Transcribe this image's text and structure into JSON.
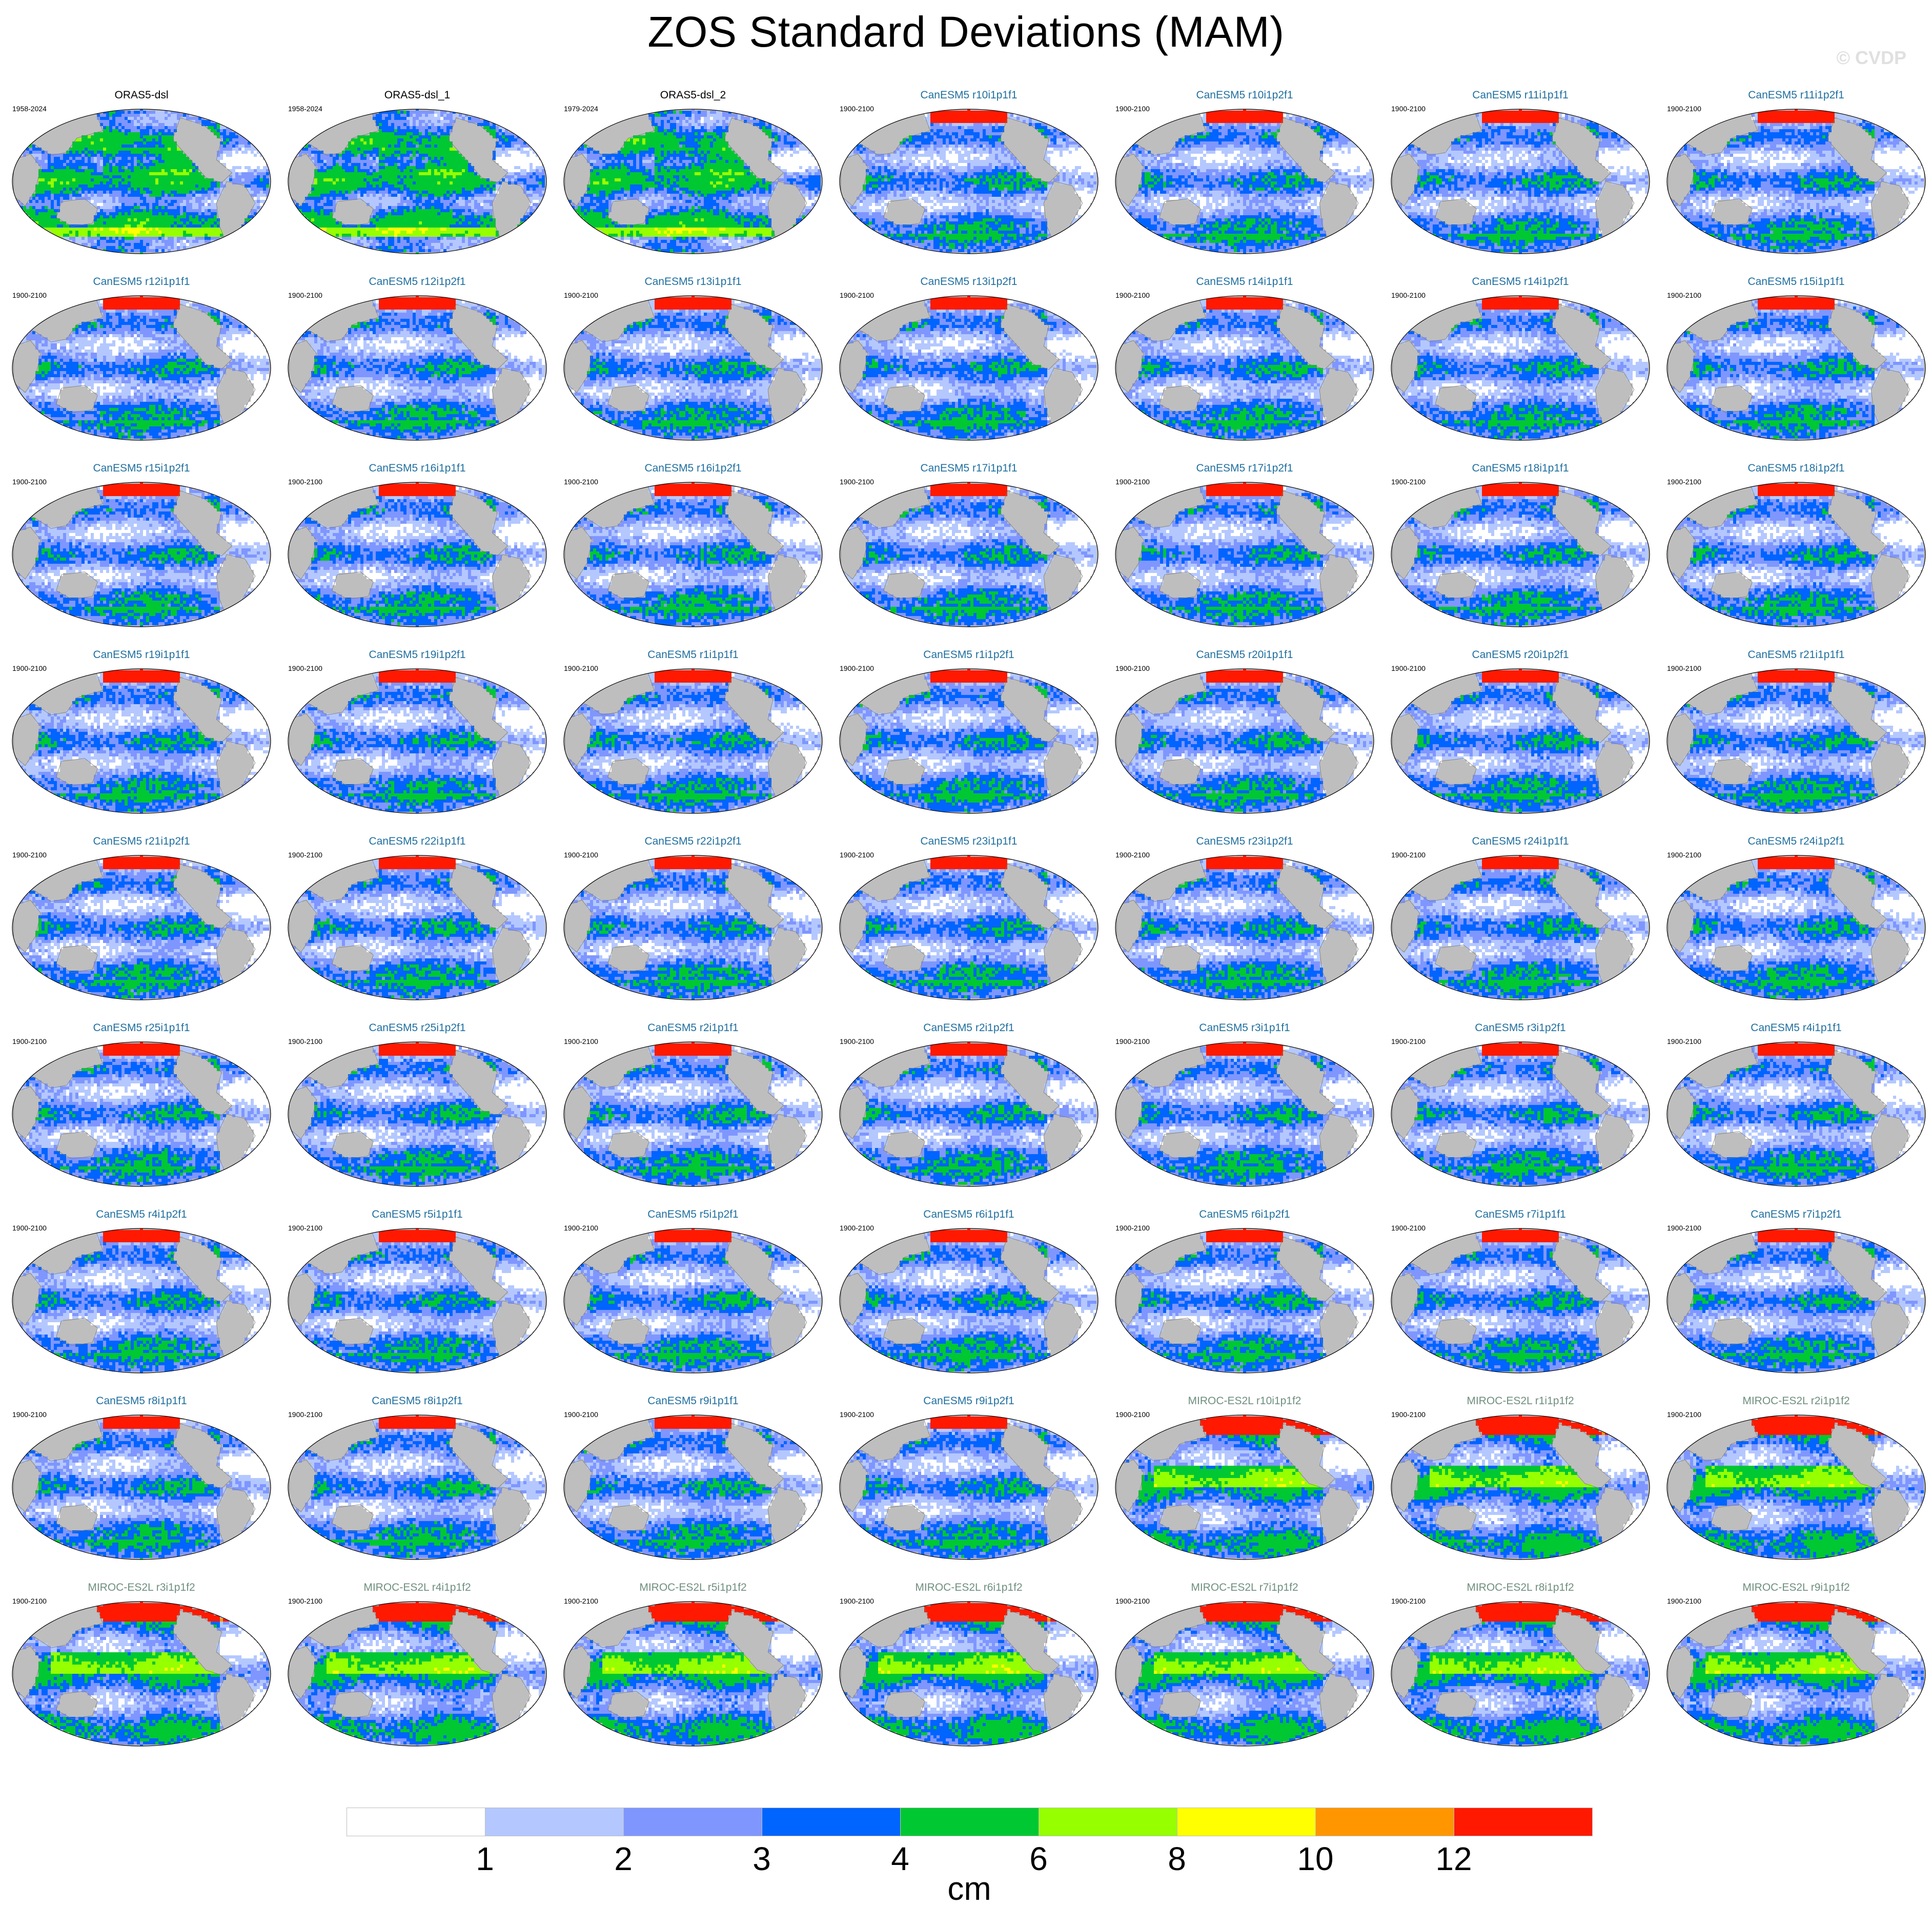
{
  "title": "ZOS Standard Deviations (MAM)",
  "watermark": "© CVDP",
  "chart_data": {
    "type": "heatmap",
    "projection": "global map panels (Pacific-centered ellipse), gray land",
    "grid_columns": 7,
    "panels": [
      {
        "title": "ORAS5-dsl",
        "years": "1958-2024",
        "group": "obs"
      },
      {
        "title": "ORAS5-dsl_1",
        "years": "1958-2024",
        "group": "obs"
      },
      {
        "title": "ORAS5-dsl_2",
        "years": "1979-2024",
        "group": "obs"
      },
      {
        "title": "CanESM5 r10i1p1f1",
        "years": "1900-2100",
        "group": "canesm"
      },
      {
        "title": "CanESM5 r10i1p2f1",
        "years": "1900-2100",
        "group": "canesm"
      },
      {
        "title": "CanESM5 r11i1p1f1",
        "years": "1900-2100",
        "group": "canesm"
      },
      {
        "title": "CanESM5 r11i1p2f1",
        "years": "1900-2100",
        "group": "canesm"
      },
      {
        "title": "CanESM5 r12i1p1f1",
        "years": "1900-2100",
        "group": "canesm"
      },
      {
        "title": "CanESM5 r12i1p2f1",
        "years": "1900-2100",
        "group": "canesm"
      },
      {
        "title": "CanESM5 r13i1p1f1",
        "years": "1900-2100",
        "group": "canesm"
      },
      {
        "title": "CanESM5 r13i1p2f1",
        "years": "1900-2100",
        "group": "canesm"
      },
      {
        "title": "CanESM5 r14i1p1f1",
        "years": "1900-2100",
        "group": "canesm"
      },
      {
        "title": "CanESM5 r14i1p2f1",
        "years": "1900-2100",
        "group": "canesm"
      },
      {
        "title": "CanESM5 r15i1p1f1",
        "years": "1900-2100",
        "group": "canesm"
      },
      {
        "title": "CanESM5 r15i1p2f1",
        "years": "1900-2100",
        "group": "canesm"
      },
      {
        "title": "CanESM5 r16i1p1f1",
        "years": "1900-2100",
        "group": "canesm"
      },
      {
        "title": "CanESM5 r16i1p2f1",
        "years": "1900-2100",
        "group": "canesm"
      },
      {
        "title": "CanESM5 r17i1p1f1",
        "years": "1900-2100",
        "group": "canesm"
      },
      {
        "title": "CanESM5 r17i1p2f1",
        "years": "1900-2100",
        "group": "canesm"
      },
      {
        "title": "CanESM5 r18i1p1f1",
        "years": "1900-2100",
        "group": "canesm"
      },
      {
        "title": "CanESM5 r18i1p2f1",
        "years": "1900-2100",
        "group": "canesm"
      },
      {
        "title": "CanESM5 r19i1p1f1",
        "years": "1900-2100",
        "group": "canesm"
      },
      {
        "title": "CanESM5 r19i1p2f1",
        "years": "1900-2100",
        "group": "canesm"
      },
      {
        "title": "CanESM5 r1i1p1f1",
        "years": "1900-2100",
        "group": "canesm"
      },
      {
        "title": "CanESM5 r1i1p2f1",
        "years": "1900-2100",
        "group": "canesm"
      },
      {
        "title": "CanESM5 r20i1p1f1",
        "years": "1900-2100",
        "group": "canesm"
      },
      {
        "title": "CanESM5 r20i1p2f1",
        "years": "1900-2100",
        "group": "canesm"
      },
      {
        "title": "CanESM5 r21i1p1f1",
        "years": "1900-2100",
        "group": "canesm"
      },
      {
        "title": "CanESM5 r21i1p2f1",
        "years": "1900-2100",
        "group": "canesm"
      },
      {
        "title": "CanESM5 r22i1p1f1",
        "years": "1900-2100",
        "group": "canesm"
      },
      {
        "title": "CanESM5 r22i1p2f1",
        "years": "1900-2100",
        "group": "canesm"
      },
      {
        "title": "CanESM5 r23i1p1f1",
        "years": "1900-2100",
        "group": "canesm"
      },
      {
        "title": "CanESM5 r23i1p2f1",
        "years": "1900-2100",
        "group": "canesm"
      },
      {
        "title": "CanESM5 r24i1p1f1",
        "years": "1900-2100",
        "group": "canesm"
      },
      {
        "title": "CanESM5 r24i1p2f1",
        "years": "1900-2100",
        "group": "canesm"
      },
      {
        "title": "CanESM5 r25i1p1f1",
        "years": "1900-2100",
        "group": "canesm"
      },
      {
        "title": "CanESM5 r25i1p2f1",
        "years": "1900-2100",
        "group": "canesm"
      },
      {
        "title": "CanESM5 r2i1p1f1",
        "years": "1900-2100",
        "group": "canesm"
      },
      {
        "title": "CanESM5 r2i1p2f1",
        "years": "1900-2100",
        "group": "canesm"
      },
      {
        "title": "CanESM5 r3i1p1f1",
        "years": "1900-2100",
        "group": "canesm"
      },
      {
        "title": "CanESM5 r3i1p2f1",
        "years": "1900-2100",
        "group": "canesm"
      },
      {
        "title": "CanESM5 r4i1p1f1",
        "years": "1900-2100",
        "group": "canesm"
      },
      {
        "title": "CanESM5 r4i1p2f1",
        "years": "1900-2100",
        "group": "canesm"
      },
      {
        "title": "CanESM5 r5i1p1f1",
        "years": "1900-2100",
        "group": "canesm"
      },
      {
        "title": "CanESM5 r5i1p2f1",
        "years": "1900-2100",
        "group": "canesm"
      },
      {
        "title": "CanESM5 r6i1p1f1",
        "years": "1900-2100",
        "group": "canesm"
      },
      {
        "title": "CanESM5 r6i1p2f1",
        "years": "1900-2100",
        "group": "canesm"
      },
      {
        "title": "CanESM5 r7i1p1f1",
        "years": "1900-2100",
        "group": "canesm"
      },
      {
        "title": "CanESM5 r7i1p2f1",
        "years": "1900-2100",
        "group": "canesm"
      },
      {
        "title": "CanESM5 r8i1p1f1",
        "years": "1900-2100",
        "group": "canesm"
      },
      {
        "title": "CanESM5 r8i1p2f1",
        "years": "1900-2100",
        "group": "canesm"
      },
      {
        "title": "CanESM5 r9i1p1f1",
        "years": "1900-2100",
        "group": "canesm"
      },
      {
        "title": "CanESM5 r9i1p2f1",
        "years": "1900-2100",
        "group": "canesm"
      },
      {
        "title": "MIROC-ES2L r10i1p1f2",
        "years": "1900-2100",
        "group": "miroc"
      },
      {
        "title": "MIROC-ES2L r1i1p1f2",
        "years": "1900-2100",
        "group": "miroc"
      },
      {
        "title": "MIROC-ES2L r2i1p1f2",
        "years": "1900-2100",
        "group": "miroc"
      },
      {
        "title": "MIROC-ES2L r3i1p1f2",
        "years": "1900-2100",
        "group": "miroc"
      },
      {
        "title": "MIROC-ES2L r4i1p1f2",
        "years": "1900-2100",
        "group": "miroc"
      },
      {
        "title": "MIROC-ES2L r5i1p1f2",
        "years": "1900-2100",
        "group": "miroc"
      },
      {
        "title": "MIROC-ES2L r6i1p1f2",
        "years": "1900-2100",
        "group": "miroc"
      },
      {
        "title": "MIROC-ES2L r7i1p1f2",
        "years": "1900-2100",
        "group": "miroc"
      },
      {
        "title": "MIROC-ES2L r8i1p1f2",
        "years": "1900-2100",
        "group": "miroc"
      },
      {
        "title": "MIROC-ES2L r9i1p1f2",
        "years": "1900-2100",
        "group": "miroc"
      }
    ],
    "title_colors": {
      "obs": "#000000",
      "canesm": "#1f6f9f",
      "miroc": "#6f8f7f"
    },
    "colorbar": {
      "levels": [
        1,
        2,
        3,
        4,
        6,
        8,
        10,
        12
      ],
      "colors": [
        "#ffffff",
        "#b4c8ff",
        "#7f96ff",
        "#0064ff",
        "#00c832",
        "#96ff00",
        "#ffff00",
        "#ff9600",
        "#ff1900"
      ],
      "units": "cm"
    },
    "land_color": "#bebebe"
  }
}
